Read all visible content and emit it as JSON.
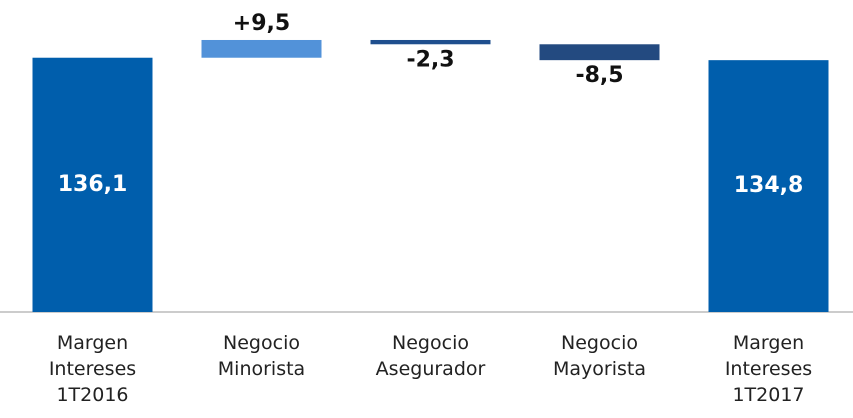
{
  "chart_data": {
    "type": "waterfall",
    "categories": [
      "Margen Intereses 1T2016",
      "Negocio Minorista",
      "Negocio Asegurador",
      "Negocio Mayorista",
      "Margen Intereses 1T2017"
    ],
    "values": [
      136.1,
      9.5,
      -2.3,
      -8.5,
      134.8
    ],
    "value_labels": [
      "136,1",
      "+9,5",
      "-2,3",
      "-8,5",
      "134,8"
    ],
    "measure": [
      "absolute",
      "relative",
      "relative",
      "relative",
      "absolute"
    ],
    "colors": [
      "#005eac",
      "#5292d9",
      "#1f4f8e",
      "#234a80",
      "#005eac"
    ],
    "ylim": [
      0,
      167
    ]
  }
}
